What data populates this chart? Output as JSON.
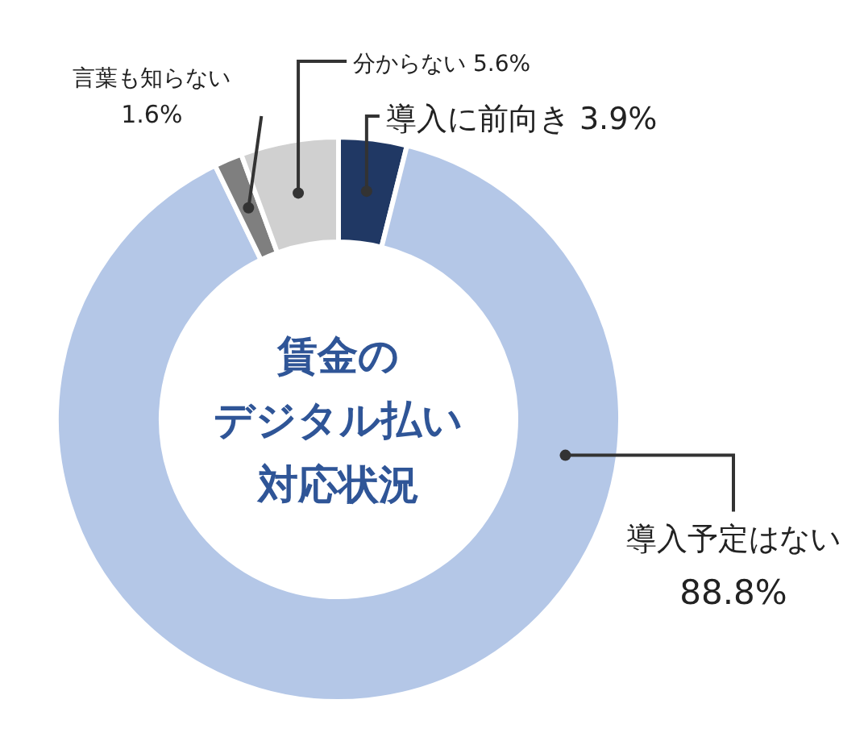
{
  "chart_data": {
    "type": "donut",
    "title": "賃金のデジタル払い対応状況",
    "categories": [
      "導入に前向き",
      "導入予定はない",
      "言葉も知らない",
      "分からない"
    ],
    "values": [
      3.9,
      88.8,
      1.6,
      5.6
    ],
    "value_labels": [
      "3.9%",
      "88.8%",
      "1.6%",
      "5.6%"
    ],
    "colors": [
      "#203864",
      "#b4c7e7",
      "#7f7f7f",
      "#d0d0d0"
    ]
  }
}
